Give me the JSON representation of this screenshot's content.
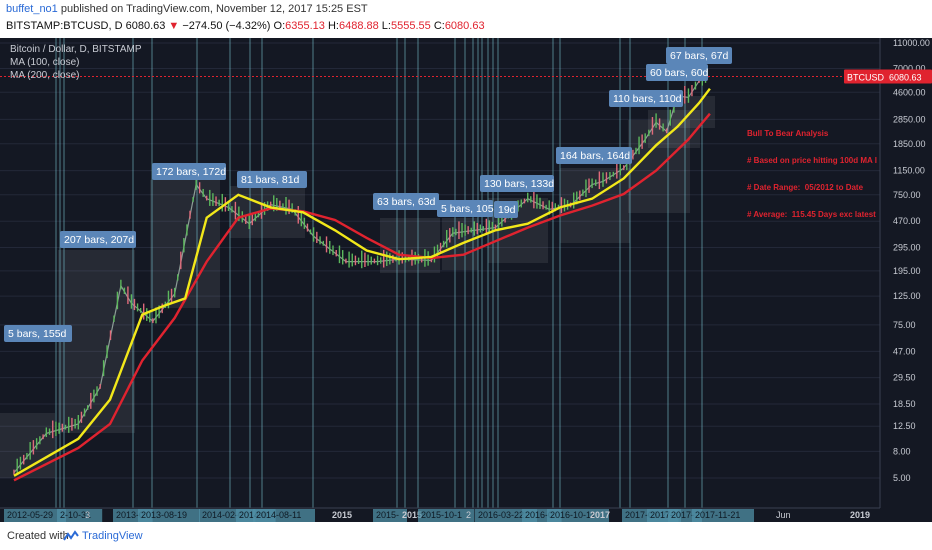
{
  "header": {
    "username": "buffet_no1",
    "published": "published on TradingView.com, November 12, 2017 15:25 EST",
    "symbol": "BITSTAMP:BTCUSD, D",
    "last": "6080.63",
    "change": "−274.50 (−4.32%)",
    "o_label": "O:",
    "o_val": "6355.13",
    "h_label": "H:",
    "h_val": "6488.88",
    "l_label": "L:",
    "l_val": "5555.55",
    "c_label": "C:",
    "c_val": "6080.63"
  },
  "legend": {
    "title": "Bitcoin / Dollar, D, BITSTAMP",
    "ma100": "MA (100, close)",
    "ma200": "MA (200, close)"
  },
  "price_badge": {
    "symbol": "BTCUSD",
    "price": "6080.63"
  },
  "annotation_note": [
    "Bull To Bear Analysis",
    "# Based on price hitting 100d MA l",
    "# Date Range:  05/2012 to Date",
    "# Average:  115.45 Days exc latest"
  ],
  "colors": {
    "background": "#141823",
    "ma100": "#f2e81a",
    "ma200": "#e0232f",
    "vertical_lines": "#7fd3e0",
    "label_box": "#5b86b8",
    "up_candle": "#5cb85c",
    "down_candle": "#e06a7a"
  },
  "chart_data": {
    "type": "line",
    "scale": "log",
    "y_ticks": [
      "11000.00",
      "7000.00",
      "4600.00",
      "2850.00",
      "1850.00",
      "1150.00",
      "750.00",
      "470.00",
      "295.00",
      "195.00",
      "125.00",
      "75.00",
      "47.00",
      "29.50",
      "18.50",
      "12.50",
      "8.00",
      "5.00"
    ],
    "x_ticks": [
      "2012-05-29",
      "2-10-31",
      "3",
      "2013-0",
      "2013-08-19",
      "2014-02-0",
      "2014-0",
      "2014-08-11",
      "2015",
      "2015-",
      "2015",
      "2015-10-1",
      "2",
      "2016-03-22",
      "2016-0",
      "2016-10-11",
      "2017",
      "2017-03-2",
      "2017-",
      "2017-",
      "2017-11-21",
      "Jun",
      "2019"
    ],
    "bar_labels": [
      "5 bars, 155d",
      "207 bars, 207d",
      "172 bars, 172d",
      "81 bars, 81d",
      "63 bars, 63d",
      "5 bars, 105d",
      "19d",
      "130 bars, 133d",
      "164 bars, 164d",
      "110 bars, 110d",
      "60 bars, 60d",
      "67 bars, 67d"
    ],
    "price_series": {
      "name": "BTCUSD",
      "points": [
        [
          "2012-06",
          5.5
        ],
        [
          "2012-09",
          11
        ],
        [
          "2012-12",
          13
        ],
        [
          "2013-02",
          25
        ],
        [
          "2013-04",
          150
        ],
        [
          "2013-05",
          110
        ],
        [
          "2013-07",
          80
        ],
        [
          "2013-09",
          130
        ],
        [
          "2013-11",
          900
        ],
        [
          "2013-12",
          700
        ],
        [
          "2014-02",
          600
        ],
        [
          "2014-04",
          450
        ],
        [
          "2014-06",
          630
        ],
        [
          "2014-08",
          580
        ],
        [
          "2014-10",
          360
        ],
        [
          "2015-01",
          230
        ],
        [
          "2015-04",
          230
        ],
        [
          "2015-06",
          240
        ],
        [
          "2015-09",
          235
        ],
        [
          "2015-11",
          380
        ],
        [
          "2016-01",
          400
        ],
        [
          "2016-03",
          420
        ],
        [
          "2016-06",
          700
        ],
        [
          "2016-08",
          580
        ],
        [
          "2016-10",
          620
        ],
        [
          "2016-12",
          900
        ],
        [
          "2017-01",
          950
        ],
        [
          "2017-03",
          1200
        ],
        [
          "2017-05",
          2000
        ],
        [
          "2017-06",
          2700
        ],
        [
          "2017-07",
          2300
        ],
        [
          "2017-08",
          4300
        ],
        [
          "2017-09",
          4200
        ],
        [
          "2017-10",
          5600
        ],
        [
          "2017-11-12",
          6080.63
        ]
      ]
    },
    "ma100": {
      "name": "MA (100, close)",
      "points": [
        [
          "2012-06",
          5.2
        ],
        [
          "2012-12",
          10
        ],
        [
          "2013-03",
          20
        ],
        [
          "2013-06",
          90
        ],
        [
          "2013-08",
          105
        ],
        [
          "2013-10",
          120
        ],
        [
          "2013-12",
          500
        ],
        [
          "2014-03",
          750
        ],
        [
          "2014-06",
          600
        ],
        [
          "2014-09",
          550
        ],
        [
          "2014-12",
          400
        ],
        [
          "2015-03",
          280
        ],
        [
          "2015-06",
          240
        ],
        [
          "2015-09",
          250
        ],
        [
          "2015-12",
          320
        ],
        [
          "2016-03",
          400
        ],
        [
          "2016-06",
          450
        ],
        [
          "2016-09",
          600
        ],
        [
          "2016-12",
          700
        ],
        [
          "2017-03",
          1000
        ],
        [
          "2017-06",
          1800
        ],
        [
          "2017-08",
          2500
        ],
        [
          "2017-10",
          3800
        ],
        [
          "2017-11",
          4900
        ]
      ]
    },
    "ma200": {
      "name": "MA (200, close)",
      "points": [
        [
          "2012-06",
          4.8
        ],
        [
          "2012-12",
          8.5
        ],
        [
          "2013-03",
          13
        ],
        [
          "2013-06",
          40
        ],
        [
          "2013-09",
          85
        ],
        [
          "2013-12",
          230
        ],
        [
          "2014-03",
          500
        ],
        [
          "2014-06",
          590
        ],
        [
          "2014-09",
          560
        ],
        [
          "2014-12",
          480
        ],
        [
          "2015-03",
          350
        ],
        [
          "2015-06",
          260
        ],
        [
          "2015-09",
          245
        ],
        [
          "2015-12",
          260
        ],
        [
          "2016-03",
          330
        ],
        [
          "2016-06",
          420
        ],
        [
          "2016-09",
          520
        ],
        [
          "2016-12",
          620
        ],
        [
          "2017-03",
          760
        ],
        [
          "2017-06",
          1150
        ],
        [
          "2017-09",
          2000
        ],
        [
          "2017-11",
          3150
        ]
      ]
    }
  },
  "footer": {
    "created": "Created with",
    "brand": "TradingView"
  }
}
